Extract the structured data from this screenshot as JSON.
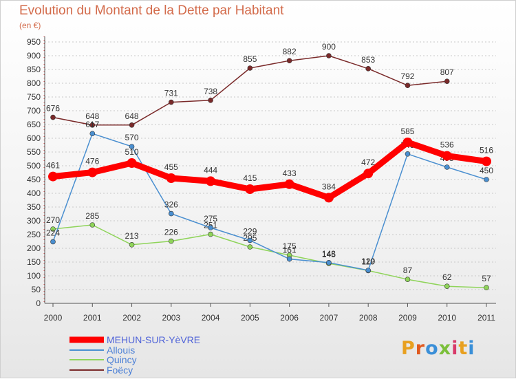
{
  "title": "Evolution du Montant de la Dette par Habitant",
  "subtitle": "(en €)",
  "logo_text": "Proxiti",
  "chart_data": {
    "type": "line",
    "x": [
      "2000",
      "2001",
      "2002",
      "2003",
      "2004",
      "2005",
      "2006",
      "2007",
      "2008",
      "2009",
      "2010",
      "2011"
    ],
    "ylim": [
      0,
      950
    ],
    "yticks": [
      0,
      50,
      100,
      150,
      200,
      250,
      300,
      350,
      400,
      450,
      500,
      550,
      600,
      650,
      700,
      750,
      800,
      850,
      900,
      950
    ],
    "grid": true,
    "legend_position": "bottom-left",
    "series": [
      {
        "name": "MEHUN-SUR-YèVRE",
        "color": "#ff0000",
        "values": [
          461,
          476,
          510,
          455,
          444,
          415,
          433,
          384,
          472,
          585,
          536,
          516
        ]
      },
      {
        "name": "Allouis",
        "color": "#4a8fd0",
        "values": [
          224,
          617,
          570,
          326,
          275,
          229,
          161,
          148,
          120,
          543,
          495,
          450
        ]
      },
      {
        "name": "Quincy",
        "color": "#8fd45a",
        "values": [
          270,
          285,
          213,
          226,
          251,
          205,
          175,
          145,
          119,
          87,
          62,
          57
        ]
      },
      {
        "name": "Foëcy",
        "color": "#7a2a2a",
        "values": [
          676,
          648,
          648,
          731,
          738,
          855,
          882,
          900,
          853,
          792,
          807,
          null
        ]
      }
    ]
  }
}
